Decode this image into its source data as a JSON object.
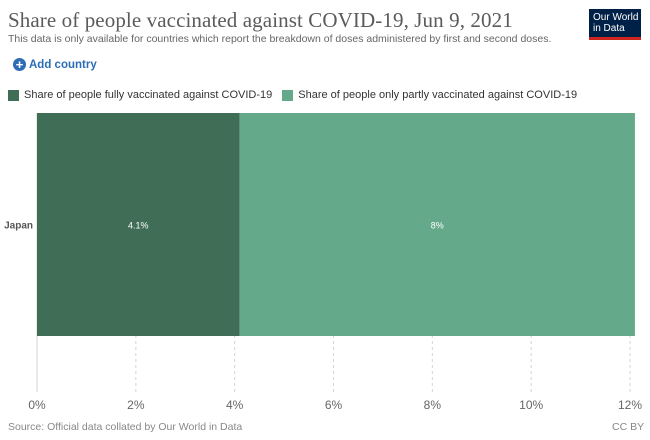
{
  "header": {
    "title": "Share of people vaccinated against COVID-19, Jun 9, 2021",
    "subtitle": "This data is only available for countries which report the breakdown of doses administered by first and second doses.",
    "logo_line1": "Our World",
    "logo_line2": "in Data"
  },
  "controls": {
    "add_country_label": "Add country"
  },
  "footer": {
    "source": "Source: Official data collated by Our World in Data",
    "license": "CC BY"
  },
  "colors": {
    "fully": "#3f6d56",
    "partly": "#63a98a",
    "logo_bg": "#002147",
    "logo_accent": "#ce261e",
    "link": "#2c6db5"
  },
  "chart_data": {
    "type": "bar",
    "orientation": "horizontal",
    "stacked": true,
    "categories": [
      "Japan"
    ],
    "series": [
      {
        "name": "Share of people fully vaccinated against COVID-19",
        "values": [
          4.1
        ],
        "labels": [
          "4.1%"
        ]
      },
      {
        "name": "Share of people only partly vaccinated against COVID-19",
        "values": [
          8
        ],
        "labels": [
          "8%"
        ]
      }
    ],
    "xlim": [
      0,
      12
    ],
    "xticks": [
      "0%",
      "2%",
      "4%",
      "6%",
      "8%",
      "10%",
      "12%"
    ],
    "grid": true,
    "legend": "top-left"
  }
}
